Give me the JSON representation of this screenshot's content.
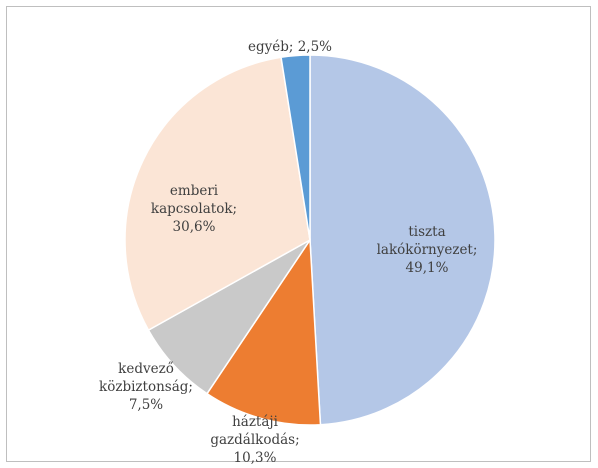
{
  "chart_data": {
    "type": "pie",
    "title": "",
    "start": "12 o'clock",
    "direction": "clockwise",
    "slices": [
      {
        "label": [
          "tiszta",
          "lakókörnyezet;",
          "49,1%"
        ],
        "value": 49.1,
        "color": "#b4c7e7"
      },
      {
        "label": [
          "háztáji",
          "gazdálkodás;",
          "10,3%"
        ],
        "value": 10.3,
        "color": "#ed7d31"
      },
      {
        "label": [
          "kedvező",
          "közbiztonság;",
          "7,5%"
        ],
        "value": 7.5,
        "color": "#c9c9c9"
      },
      {
        "label": [
          "emberi",
          "kapcsolatok;",
          "30,6%"
        ],
        "value": 30.6,
        "color": "#fbe5d6"
      },
      {
        "label": [
          "egyéb; 2,5%"
        ],
        "value": 2.5,
        "color": "#5b9bd5"
      }
    ]
  }
}
